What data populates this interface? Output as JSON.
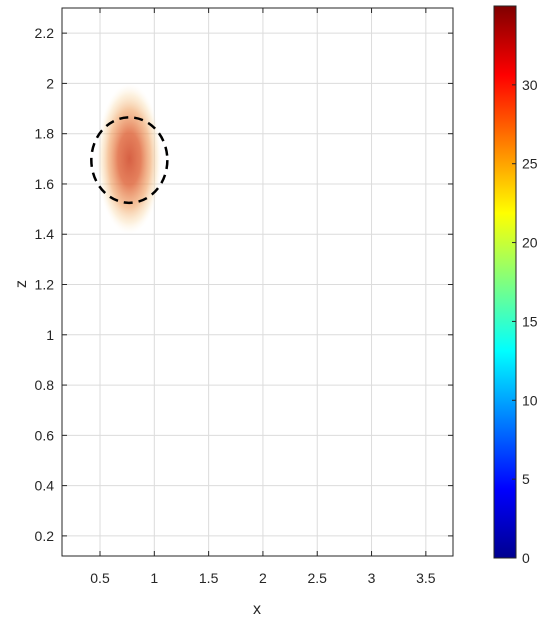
{
  "chart_data": {
    "type": "heatmap",
    "title": "",
    "xlabel": "x",
    "ylabel": "z",
    "xlim": [
      0.15,
      3.75
    ],
    "ylim": [
      0.12,
      2.3
    ],
    "x_ticks": [
      0.5,
      1,
      1.5,
      2,
      2.5,
      3,
      3.5
    ],
    "x_tick_labels": [
      "0.5",
      "1",
      "1.5",
      "2",
      "2.5",
      "3",
      "3.5"
    ],
    "y_ticks": [
      0.2,
      0.4,
      0.6,
      0.8,
      1.0,
      1.2,
      1.4,
      1.6,
      1.8,
      2.0,
      2.2
    ],
    "y_tick_labels": [
      "0.2",
      "0.4",
      "0.6",
      "0.8",
      "1",
      "1.2",
      "1.4",
      "1.6",
      "1.8",
      "2",
      "2.2"
    ],
    "grid": true,
    "colormap": "jet",
    "colorbar": {
      "range": [
        0,
        35
      ],
      "ticks": [
        0,
        5,
        10,
        15,
        20,
        25,
        30
      ],
      "tick_labels": [
        "0",
        "5",
        "10",
        "15",
        "20",
        "25",
        "30"
      ]
    },
    "blob": {
      "center_x": 0.77,
      "center_z": 1.7,
      "radius_x": 0.3,
      "radius_z": 0.3,
      "peak_value": 34,
      "color": "#d86040"
    },
    "dashed_ellipse": {
      "center_x": 0.77,
      "center_z": 1.695,
      "semi_axis_x": 0.35,
      "semi_axis_z": 0.17,
      "color": "#000000"
    }
  }
}
